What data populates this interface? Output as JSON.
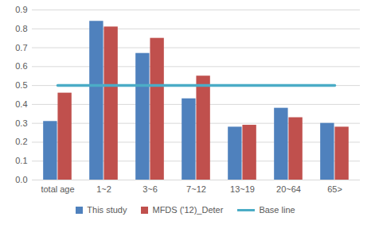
{
  "chart_data": {
    "type": "bar",
    "categories": [
      "total age",
      "1~2",
      "3~6",
      "7~12",
      "13~19",
      "20~64",
      "65>"
    ],
    "series": [
      {
        "name": "This study",
        "type": "bar",
        "color": "#4f81bd",
        "values": [
          0.31,
          0.84,
          0.67,
          0.43,
          0.28,
          0.38,
          0.3
        ]
      },
      {
        "name": "MFDS ('12)_Deter",
        "type": "bar",
        "color": "#c0504d",
        "values": [
          0.46,
          0.81,
          0.75,
          0.55,
          0.29,
          0.33,
          0.28
        ]
      },
      {
        "name": "Base line",
        "type": "line",
        "color": "#4bacc6",
        "values": [
          0.5,
          0.5,
          0.5,
          0.5,
          0.5,
          0.5,
          0.5
        ]
      }
    ],
    "ylim": [
      0,
      0.9
    ],
    "yticks": [
      {
        "value": 0,
        "label": "0.0"
      },
      0.1,
      0.2,
      0.3,
      0.4,
      0.5,
      0.6,
      0.7,
      0.8,
      0.9
    ],
    "grid": true,
    "legend": "bottom"
  }
}
